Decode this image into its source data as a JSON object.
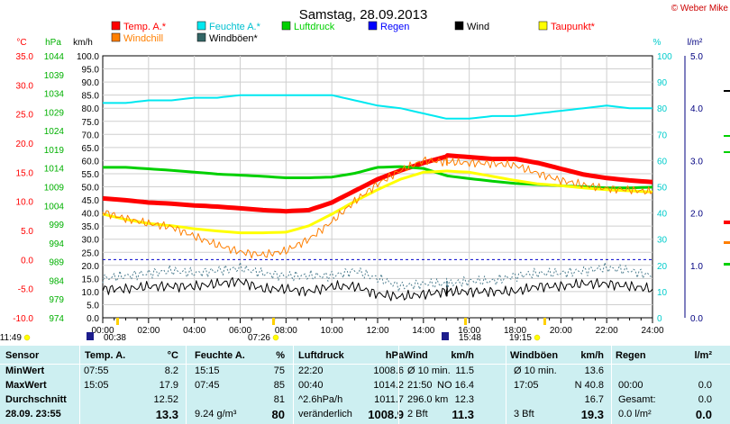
{
  "chart_data": {
    "type": "line",
    "title": "Samstag, 28.09.2013",
    "copyright": "© Weber Mike",
    "x_ticks": [
      "00:00",
      "02:00",
      "04:00",
      "06:00",
      "08:00",
      "10:00",
      "12:00",
      "14:00",
      "16:00",
      "18:00",
      "20:00",
      "22:00",
      "24:00"
    ],
    "axes": {
      "temp_c": {
        "label": "°C",
        "color": "#ff0000",
        "ticks": [
          "35.0",
          "30.0",
          "25.0",
          "20.0",
          "15.0",
          "10.0",
          "5.0",
          "0.0",
          "-5.0",
          "-10.0"
        ],
        "range": [
          -10,
          35
        ]
      },
      "pressure_hpa": {
        "label": "hPa",
        "color": "#00b000",
        "ticks": [
          "1044",
          "1039",
          "1034",
          "1029",
          "1024",
          "1019",
          "1014",
          "1009",
          "1004",
          "999",
          "994",
          "989",
          "984",
          "979",
          "974"
        ],
        "range": [
          974,
          1044
        ]
      },
      "wind_kmh": {
        "label": "km/h",
        "color": "#000000",
        "ticks": [
          "100.0",
          "95.0",
          "90.0",
          "85.0",
          "80.0",
          "75.0",
          "70.0",
          "65.0",
          "60.0",
          "55.0",
          "50.0",
          "45.0",
          "40.0",
          "35.0",
          "30.0",
          "25.0",
          "20.0",
          "15.0",
          "10.0",
          "5.0",
          "0.0"
        ],
        "range": [
          0,
          100
        ]
      },
      "humidity_pct": {
        "label": "%",
        "color": "#00cccc",
        "ticks": [
          "100",
          "90",
          "80",
          "70",
          "60",
          "50",
          "40",
          "30",
          "20",
          "10",
          "0"
        ],
        "range": [
          0,
          100
        ]
      },
      "rain_lm2": {
        "label": "l/m²",
        "color": "#000080",
        "ticks": [
          "5.0",
          "4.0",
          "3.0",
          "2.0",
          "1.0",
          "0.0"
        ],
        "range": [
          0,
          5
        ]
      }
    },
    "legend": [
      {
        "name": "Temp. A.*",
        "color": "#ff0000"
      },
      {
        "name": "Feuchte A.*",
        "color": "#00e8f0"
      },
      {
        "name": "Luftdruck",
        "color": "#00d000"
      },
      {
        "name": "Regen",
        "color": "#0000ff"
      },
      {
        "name": "Wind",
        "color": "#000000"
      },
      {
        "name": "Taupunkt*",
        "color": "#ffff00"
      },
      {
        "name": "Windchill",
        "color": "#ff7f00"
      },
      {
        "name": "Windböen*",
        "color": "#336666"
      }
    ],
    "hours": [
      0,
      1,
      2,
      3,
      4,
      5,
      6,
      7,
      8,
      9,
      10,
      11,
      12,
      13,
      14,
      15,
      15.05,
      16,
      17,
      18,
      19,
      20,
      21,
      22,
      23,
      24
    ],
    "series": [
      {
        "name": "Temp. A.*",
        "axis": "temp_c",
        "color": "#ff0000",
        "width": 5,
        "values": [
          10.5,
          10.2,
          9.8,
          9.6,
          9.3,
          9.1,
          8.8,
          8.5,
          8.3,
          8.5,
          9.8,
          11.8,
          13.8,
          15.3,
          16.6,
          17.7,
          17.9,
          17.6,
          17.3,
          17.3,
          16.6,
          15.6,
          14.6,
          14.0,
          13.6,
          13.3
        ]
      },
      {
        "name": "Feuchte A.*",
        "axis": "humidity_pct",
        "color": "#00e8f0",
        "width": 2,
        "values": [
          82,
          82,
          83,
          83,
          84,
          84,
          85,
          85,
          85,
          85,
          85,
          83,
          81,
          80,
          78,
          76,
          76,
          76,
          77,
          77,
          78,
          79,
          80,
          81,
          80,
          80
        ]
      },
      {
        "name": "Luftdruck",
        "axis": "pressure_hpa",
        "color": "#00d000",
        "width": 3,
        "values": [
          1014.2,
          1014.2,
          1013.8,
          1013.4,
          1012.9,
          1012.4,
          1012.1,
          1011.8,
          1011.4,
          1011.4,
          1011.6,
          1012.6,
          1014.2,
          1014.4,
          1013.9,
          1012.0,
          1011.9,
          1011.2,
          1010.5,
          1009.9,
          1009.6,
          1009.3,
          1009.0,
          1008.7,
          1008.7,
          1008.9
        ]
      },
      {
        "name": "Taupunkt*",
        "axis": "temp_c",
        "color": "#ffff00",
        "width": 3,
        "values": [
          7.8,
          6.9,
          6.2,
          5.8,
          5.3,
          4.9,
          4.6,
          4.6,
          4.7,
          5.8,
          7.8,
          10.0,
          12.0,
          13.8,
          15.0,
          15.2,
          15.2,
          15.0,
          14.3,
          13.6,
          13.0,
          12.7,
          12.3,
          12.0,
          11.8,
          11.6
        ]
      },
      {
        "name": "Windchill",
        "axis": "temp_c",
        "color": "#ff7f00",
        "width": 1,
        "values": [
          8.2,
          7.0,
          6.2,
          5.6,
          4.0,
          2.5,
          1.3,
          0.8,
          1.5,
          3.5,
          6.5,
          10.0,
          13.0,
          15.3,
          17.0,
          16.8,
          16.8,
          16.6,
          16.5,
          16.2,
          14.8,
          13.6,
          12.8,
          12.2,
          12.0,
          11.6
        ]
      },
      {
        "name": "Windböen*",
        "axis": "wind_kmh",
        "color": "#4f7f90",
        "width": 1,
        "dashed": true,
        "values": [
          15,
          16,
          17,
          18,
          17,
          18,
          19,
          17,
          16,
          16,
          16,
          18,
          15,
          12,
          13,
          13,
          13,
          14,
          14,
          16,
          17,
          17,
          18,
          19,
          18,
          16
        ]
      },
      {
        "name": "Wind",
        "axis": "wind_kmh",
        "color": "#000000",
        "width": 1,
        "values": [
          11,
          11,
          12,
          12,
          12,
          13,
          14,
          11,
          11,
          10,
          12,
          12,
          9,
          8,
          9,
          10,
          10,
          10,
          10,
          10,
          12,
          12,
          13,
          13,
          12,
          11
        ]
      }
    ],
    "event_marks": [
      {
        "label": "11:49",
        "type": "sun"
      },
      {
        "label": "00:38",
        "type": "moon"
      },
      {
        "label": "07:26",
        "type": "sun"
      },
      {
        "label": "15:48",
        "type": "moon"
      },
      {
        "label": "19:15",
        "type": "sun"
      }
    ]
  },
  "panel": {
    "headers": [
      "Sensor",
      "Temp. A.",
      "°C",
      "Feuchte A.",
      "%",
      "Luftdruck",
      "hPa",
      "Wind",
      "km/h",
      "Windböen",
      "km/h",
      "Regen",
      "l/m²"
    ],
    "rows": [
      {
        "label": "MinWert",
        "cells": [
          "07:55",
          "8.2",
          "15:15",
          "75",
          "22:20",
          "1008.6",
          "Ø 10 min.",
          "11.5",
          "Ø 10 min.",
          "13.6",
          "",
          ""
        ]
      },
      {
        "label": "MaxWert",
        "cells": [
          "15:05",
          "17.9",
          "07:45",
          "85",
          "00:40",
          "1014.2",
          "21:50",
          "NO 16.4",
          "17:05",
          "N 40.8",
          "00:00",
          "0.0"
        ]
      },
      {
        "label": "Durchschnitt",
        "cells": [
          "",
          "12.52",
          "",
          "81",
          "^2.6hPa/h",
          "1011.7",
          "296.0 km",
          "12.3",
          "",
          "16.7",
          "Gesamt:",
          "0.0"
        ]
      },
      {
        "label": "28.09. 23:55",
        "cells": [
          "",
          "13.3",
          "9.24 g/m³",
          "80",
          "veränderlich",
          "1008.9",
          "2 Bft",
          "11.3",
          "3 Bft",
          "19.3",
          "0.0 l/m²",
          "0.0"
        ]
      }
    ]
  }
}
